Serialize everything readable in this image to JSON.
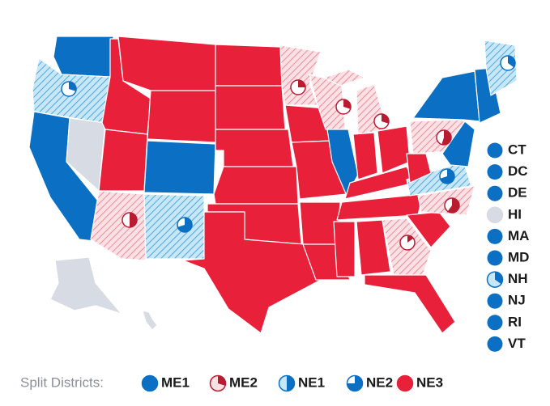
{
  "state_labels": [
    "CT",
    "DC",
    "DE",
    "HI",
    "MA",
    "MD",
    "NH",
    "NJ",
    "RI",
    "VT"
  ],
  "legend": {
    "title": "Split Districts:",
    "items": [
      "ME1",
      "ME2",
      "NE1",
      "NE2",
      "NE3"
    ]
  }
}
